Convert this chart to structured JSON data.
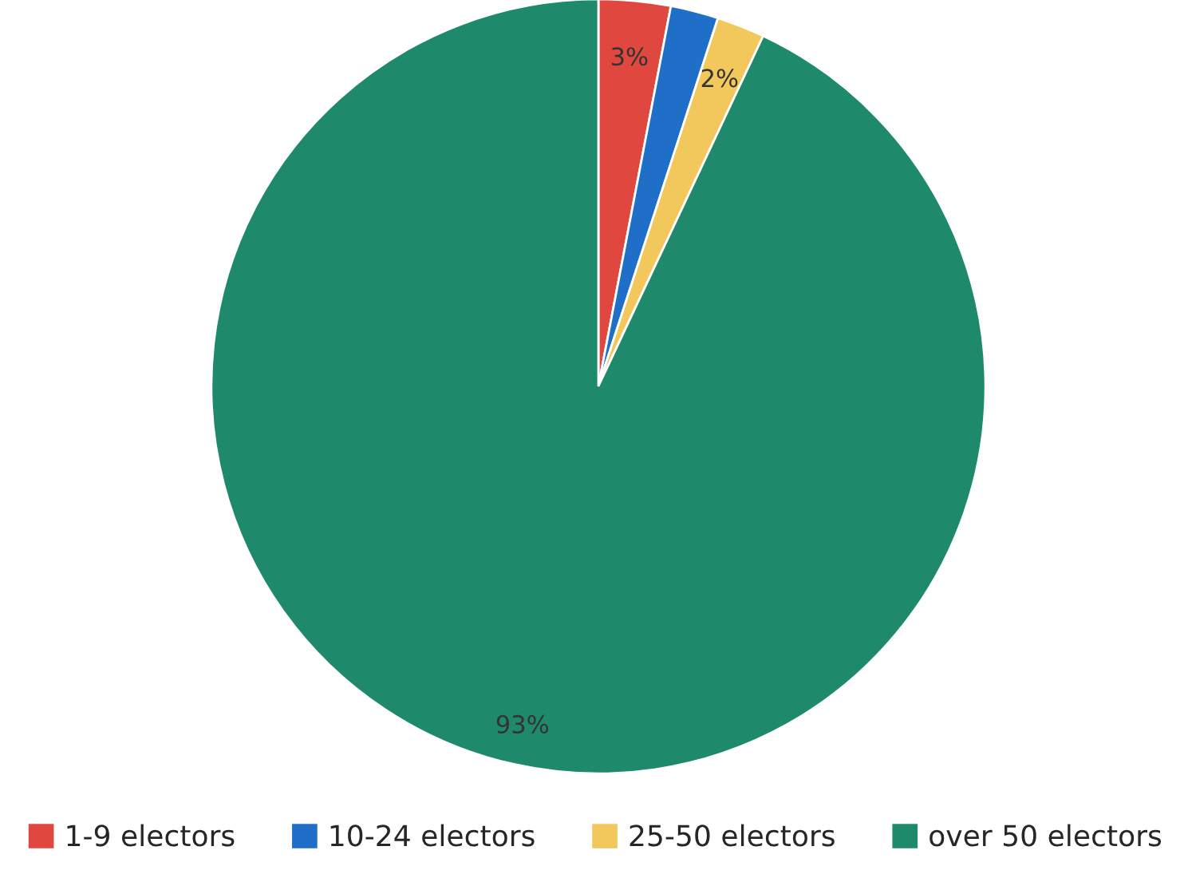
{
  "chart_data": {
    "type": "pie",
    "categories": [
      "1-9 electors",
      "10-24 electors",
      "25-50 electors",
      "over 50 electors"
    ],
    "values": [
      3,
      2,
      2,
      93
    ],
    "colors": [
      "#e0483f",
      "#1f6fc9",
      "#f2c75c",
      "#1e8a6b"
    ],
    "value_labels": [
      "3%",
      null,
      "2%",
      "93%"
    ],
    "legend": "bottom"
  }
}
